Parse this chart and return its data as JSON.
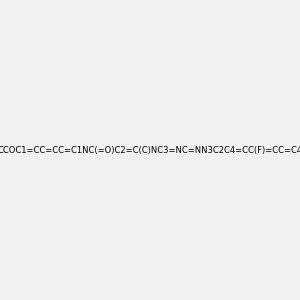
{
  "smiles": "CCOC1=CC=CC=C1NC(=O)C2=C(C)NC3=NC=NN3C2C4=CC(F)=CC=C4",
  "title": "",
  "background_color": "#f0f0f0",
  "img_size": [
    300,
    300
  ]
}
